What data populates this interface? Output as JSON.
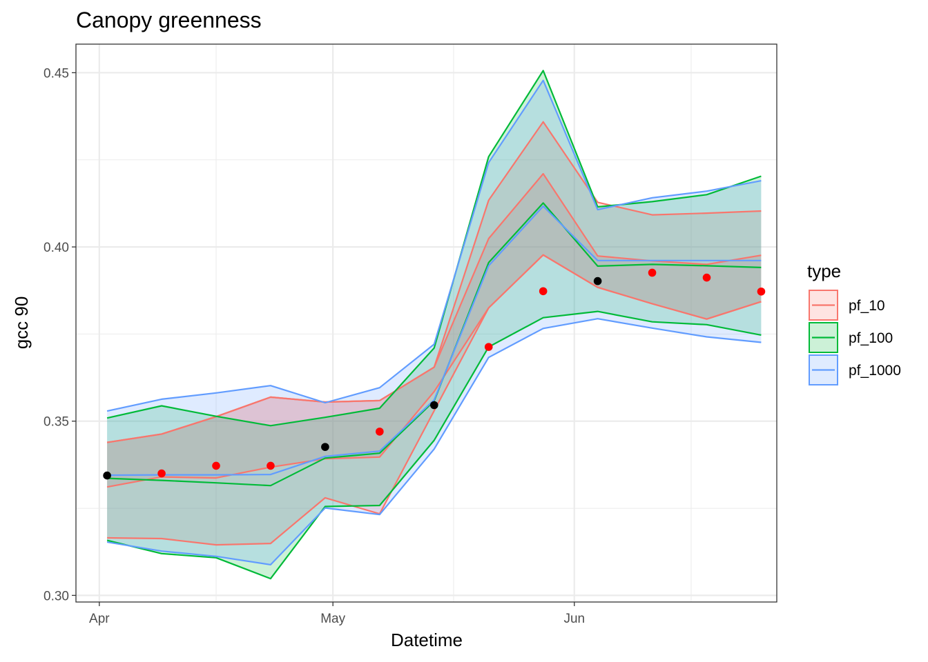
{
  "chart_data": {
    "type": "line",
    "title": "Canopy greenness",
    "xlabel": "Datetime",
    "ylabel": "gcc 90",
    "x_ticks": [
      {
        "label": "Apr",
        "date": "2021-04-01"
      },
      {
        "label": "May",
        "date": "2021-05-01"
      },
      {
        "label": "Jun",
        "date": "2021-06-01"
      }
    ],
    "y_ticks": [
      0.3,
      0.35,
      0.4,
      0.45
    ],
    "xlim": [
      "2021-03-29",
      "2021-06-27"
    ],
    "ylim": [
      0.2981,
      0.4582
    ],
    "grid": true,
    "legend": {
      "title": "type",
      "placement": "right",
      "entries": [
        {
          "label": "pf_10",
          "line": "#F8766D",
          "fill": "#F8766D"
        },
        {
          "label": "pf_100",
          "line": "#00BA38",
          "fill": "#00BA38"
        },
        {
          "label": "pf_1000",
          "line": "#619CFF",
          "fill": "#619CFF"
        }
      ]
    },
    "dates": [
      "2021-04-02",
      "2021-04-09",
      "2021-04-16",
      "2021-04-23",
      "2021-04-30",
      "2021-05-07",
      "2021-05-14",
      "2021-05-21",
      "2021-05-28",
      "2021-06-04",
      "2021-06-11",
      "2021-06-18",
      "2021-06-25"
    ],
    "series": [
      {
        "name": "pf_10",
        "color": "#F8766D",
        "upper": [
          0.3439,
          0.3463,
          0.3513,
          0.3569,
          0.3555,
          0.3559,
          0.3655,
          0.4134,
          0.4359,
          0.4128,
          0.4092,
          0.4097,
          0.4103
        ],
        "lower": [
          0.3165,
          0.3163,
          0.3145,
          0.3149,
          0.328,
          0.3234,
          0.353,
          0.3825,
          0.3977,
          0.3884,
          0.3837,
          0.3793,
          0.3843
        ],
        "inner_upper": [
          0.3439,
          0.3463,
          0.3513,
          0.3569,
          0.3555,
          0.3559,
          0.3655,
          0.4024,
          0.421,
          0.3974,
          0.396,
          0.395,
          0.3976
        ],
        "inner_lower": [
          0.3311,
          0.334,
          0.3337,
          0.3368,
          0.3392,
          0.3397,
          0.3585,
          0.3825,
          0.3977,
          0.3884,
          0.3837,
          0.3793,
          0.3843
        ]
      },
      {
        "name": "pf_100",
        "color": "#00BA38",
        "upper": [
          0.3509,
          0.3544,
          0.3514,
          0.3487,
          0.3511,
          0.3537,
          0.371,
          0.4259,
          0.4506,
          0.4115,
          0.413,
          0.415,
          0.4203
        ],
        "median": [
          0.3336,
          0.333,
          0.3323,
          0.3315,
          0.3394,
          0.3408,
          0.3558,
          0.3955,
          0.4126,
          0.3945,
          0.395,
          0.3946,
          0.3941
        ],
        "lower": [
          0.3158,
          0.312,
          0.3108,
          0.3048,
          0.3255,
          0.3258,
          0.3445,
          0.3713,
          0.3797,
          0.3815,
          0.3785,
          0.3777,
          0.3747
        ]
      },
      {
        "name": "pf_1000",
        "color": "#619CFF",
        "upper": [
          0.3529,
          0.3563,
          0.3581,
          0.3602,
          0.3553,
          0.3596,
          0.3721,
          0.4242,
          0.4478,
          0.4107,
          0.4141,
          0.416,
          0.419
        ],
        "median": [
          0.3345,
          0.3346,
          0.3346,
          0.3347,
          0.3399,
          0.3414,
          0.3561,
          0.3946,
          0.4117,
          0.3961,
          0.3961,
          0.3961,
          0.3961
        ],
        "lower": [
          0.3153,
          0.3127,
          0.3112,
          0.3088,
          0.3251,
          0.3232,
          0.342,
          0.3683,
          0.3766,
          0.3794,
          0.3767,
          0.3742,
          0.3726
        ]
      }
    ],
    "observations": [
      {
        "date": "2021-04-02",
        "value": 0.3344,
        "color": "#000000"
      },
      {
        "date": "2021-04-09",
        "value": 0.335,
        "color": "#FF0000"
      },
      {
        "date": "2021-04-16",
        "value": 0.3372,
        "color": "#FF0000"
      },
      {
        "date": "2021-04-23",
        "value": 0.3372,
        "color": "#FF0000"
      },
      {
        "date": "2021-04-30",
        "value": 0.3426,
        "color": "#000000"
      },
      {
        "date": "2021-05-07",
        "value": 0.347,
        "color": "#FF0000"
      },
      {
        "date": "2021-05-14",
        "value": 0.3546,
        "color": "#000000"
      },
      {
        "date": "2021-05-21",
        "value": 0.3713,
        "color": "#FF0000"
      },
      {
        "date": "2021-05-28",
        "value": 0.3873,
        "color": "#FF0000"
      },
      {
        "date": "2021-06-04",
        "value": 0.3902,
        "color": "#000000"
      },
      {
        "date": "2021-06-11",
        "value": 0.3926,
        "color": "#FF0000"
      },
      {
        "date": "2021-06-18",
        "value": 0.3912,
        "color": "#FF0000"
      },
      {
        "date": "2021-06-25",
        "value": 0.3872,
        "color": "#FF0000"
      }
    ]
  }
}
